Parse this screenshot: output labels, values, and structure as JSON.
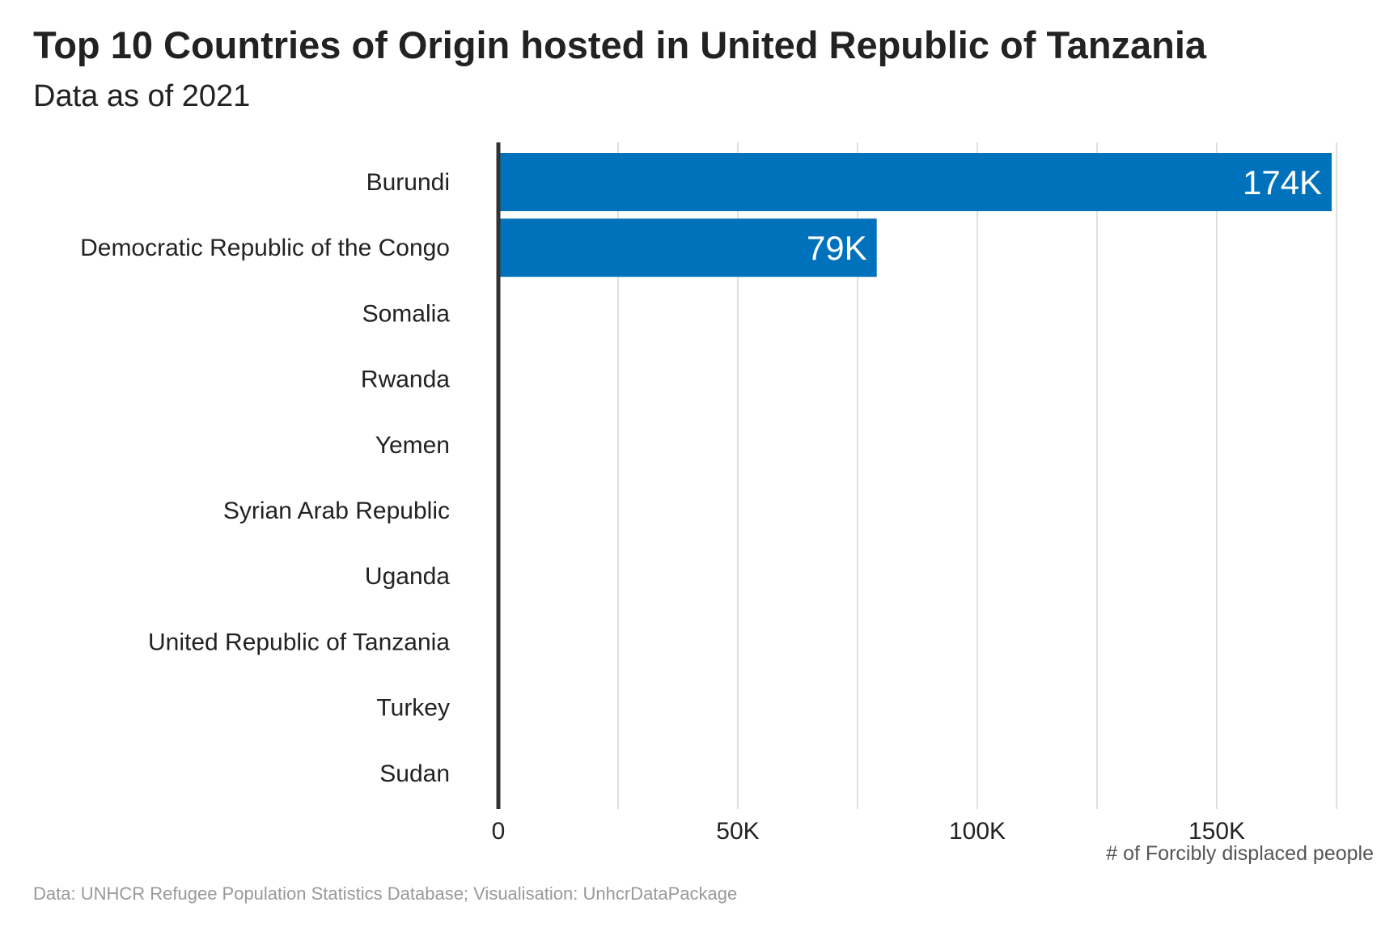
{
  "title": "Top 10 Countries of Origin hosted in United Republic of Tanzania",
  "subtitle": "Data as of 2021",
  "caption": "Data: UNHCR Refugee Population Statistics Database; Visualisation: UnhcrDataPackage",
  "colors": {
    "bar": "#0072BC",
    "axis_line": "#333333",
    "grid": "#d9d9d9",
    "bar_label": "#ffffff"
  },
  "chart_data": {
    "type": "bar",
    "orientation": "horizontal",
    "categories": [
      "Burundi",
      "Democratic Republic of the Congo",
      "Somalia",
      "Rwanda",
      "Yemen",
      "Syrian Arab Republic",
      "Uganda",
      "United Republic of Tanzania",
      "Turkey",
      "Sudan"
    ],
    "values": [
      174000,
      79000,
      0,
      0,
      0,
      0,
      0,
      0,
      0,
      0
    ],
    "data_labels": [
      "174K",
      "79K",
      "",
      "",
      "",
      "",
      "",
      "",
      "",
      ""
    ],
    "xlabel": "# of Forcibly displaced people",
    "ylabel": "",
    "xlim": [
      0,
      175000
    ],
    "x_ticks": [
      0,
      50000,
      100000,
      150000
    ],
    "x_tick_labels": [
      "0",
      "50K",
      "100K",
      "150K"
    ],
    "minor_grid": [
      25000,
      75000,
      125000,
      175000
    ],
    "grid": "vertical"
  }
}
